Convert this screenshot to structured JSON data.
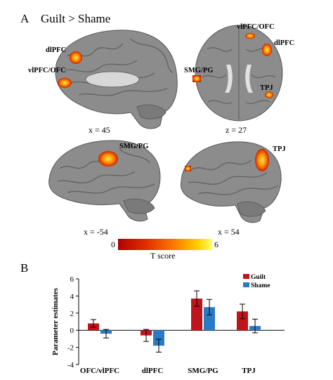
{
  "panel_a": {
    "letter": "A",
    "title": "Guilt > Shame",
    "views": [
      {
        "coord": "x = 45",
        "labels": [
          "dlPFC",
          "vlPFC/OFC"
        ]
      },
      {
        "coord": "z = 27",
        "labels": [
          "vlPFC/OFC",
          "dlPFC",
          "SMG/PG",
          "TPJ"
        ]
      },
      {
        "coord": "x = -54",
        "labels": [
          "SMG/PG"
        ]
      },
      {
        "coord": "x = 54",
        "labels": [
          "TPJ"
        ]
      }
    ],
    "colorbar": {
      "min": "0",
      "max": "6",
      "label": "T score",
      "colors": [
        "#b00000",
        "#e03000",
        "#ff7a00",
        "#ffd000",
        "#ffff66"
      ]
    }
  },
  "panel_b": {
    "letter": "B"
  },
  "chart_data": {
    "type": "bar",
    "title": "",
    "xlabel": "",
    "ylabel": "Parameter estimates",
    "ylim": [
      -4,
      6
    ],
    "yticks": [
      "-4",
      "-2",
      "0",
      "2",
      "4",
      "6"
    ],
    "categories": [
      "OFC/vlPFC",
      "dlPFC",
      "SMG/PG",
      "TPJ"
    ],
    "series": [
      {
        "name": "Guilt",
        "color": "#c0141c",
        "values": [
          0.8,
          -0.6,
          3.7,
          2.2
        ],
        "errors": [
          0.45,
          0.7,
          0.9,
          0.85
        ]
      },
      {
        "name": "Shame",
        "color": "#2b7bc4",
        "values": [
          -0.4,
          -1.8,
          2.7,
          0.5
        ],
        "errors": [
          0.5,
          0.75,
          0.9,
          0.8
        ]
      }
    ],
    "legend": "top-right",
    "grid": false
  }
}
